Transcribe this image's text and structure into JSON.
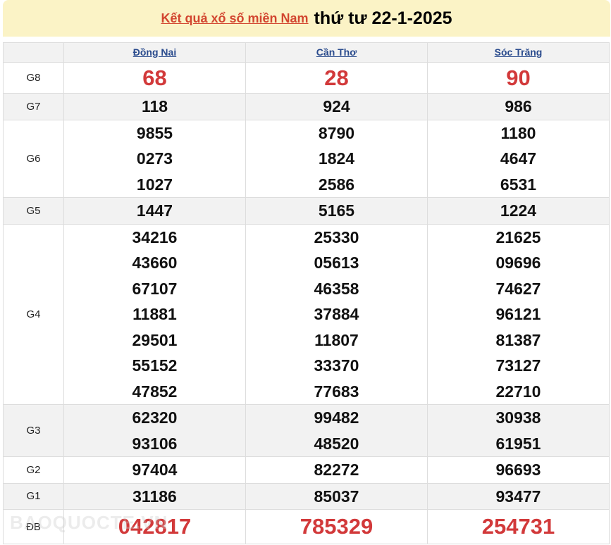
{
  "header": {
    "link_text": "Kết quả xổ số miền Nam",
    "date_text": "thứ tư 22-1-2025"
  },
  "provinces": [
    "Đồng Nai",
    "Cần Thơ",
    "Sóc Trăng"
  ],
  "prizes": [
    {
      "label": "G8",
      "style": "g8",
      "alt": false,
      "values": [
        [
          "68"
        ],
        [
          "28"
        ],
        [
          "90"
        ]
      ]
    },
    {
      "label": "G7",
      "alt": true,
      "values": [
        [
          "118"
        ],
        [
          "924"
        ],
        [
          "986"
        ]
      ]
    },
    {
      "label": "G6",
      "alt": false,
      "values": [
        [
          "9855",
          "0273",
          "1027"
        ],
        [
          "8790",
          "1824",
          "2586"
        ],
        [
          "1180",
          "4647",
          "6531"
        ]
      ]
    },
    {
      "label": "G5",
      "alt": true,
      "values": [
        [
          "1447"
        ],
        [
          "5165"
        ],
        [
          "1224"
        ]
      ]
    },
    {
      "label": "G4",
      "alt": false,
      "values": [
        [
          "34216",
          "43660",
          "67107",
          "11881",
          "29501",
          "55152",
          "47852"
        ],
        [
          "25330",
          "05613",
          "46358",
          "37884",
          "11807",
          "33370",
          "77683"
        ],
        [
          "21625",
          "09696",
          "74627",
          "96121",
          "81387",
          "73127",
          "22710"
        ]
      ]
    },
    {
      "label": "G3",
      "alt": true,
      "values": [
        [
          "62320",
          "93106"
        ],
        [
          "99482",
          "48520"
        ],
        [
          "30938",
          "61951"
        ]
      ]
    },
    {
      "label": "G2",
      "alt": false,
      "values": [
        [
          "97404"
        ],
        [
          "82272"
        ],
        [
          "96693"
        ]
      ]
    },
    {
      "label": "G1",
      "alt": true,
      "values": [
        [
          "31186"
        ],
        [
          "85037"
        ],
        [
          "93477"
        ]
      ]
    },
    {
      "label": "ĐB",
      "style": "db",
      "alt": false,
      "values": [
        [
          "042817"
        ],
        [
          "785329"
        ],
        [
          "254731"
        ]
      ]
    }
  ],
  "watermark": "BAOQUOCTE.VN",
  "colors": {
    "title_bg": "#fbf3c6",
    "accent_red": "#d2393a",
    "link_blue": "#2a4b8d"
  }
}
